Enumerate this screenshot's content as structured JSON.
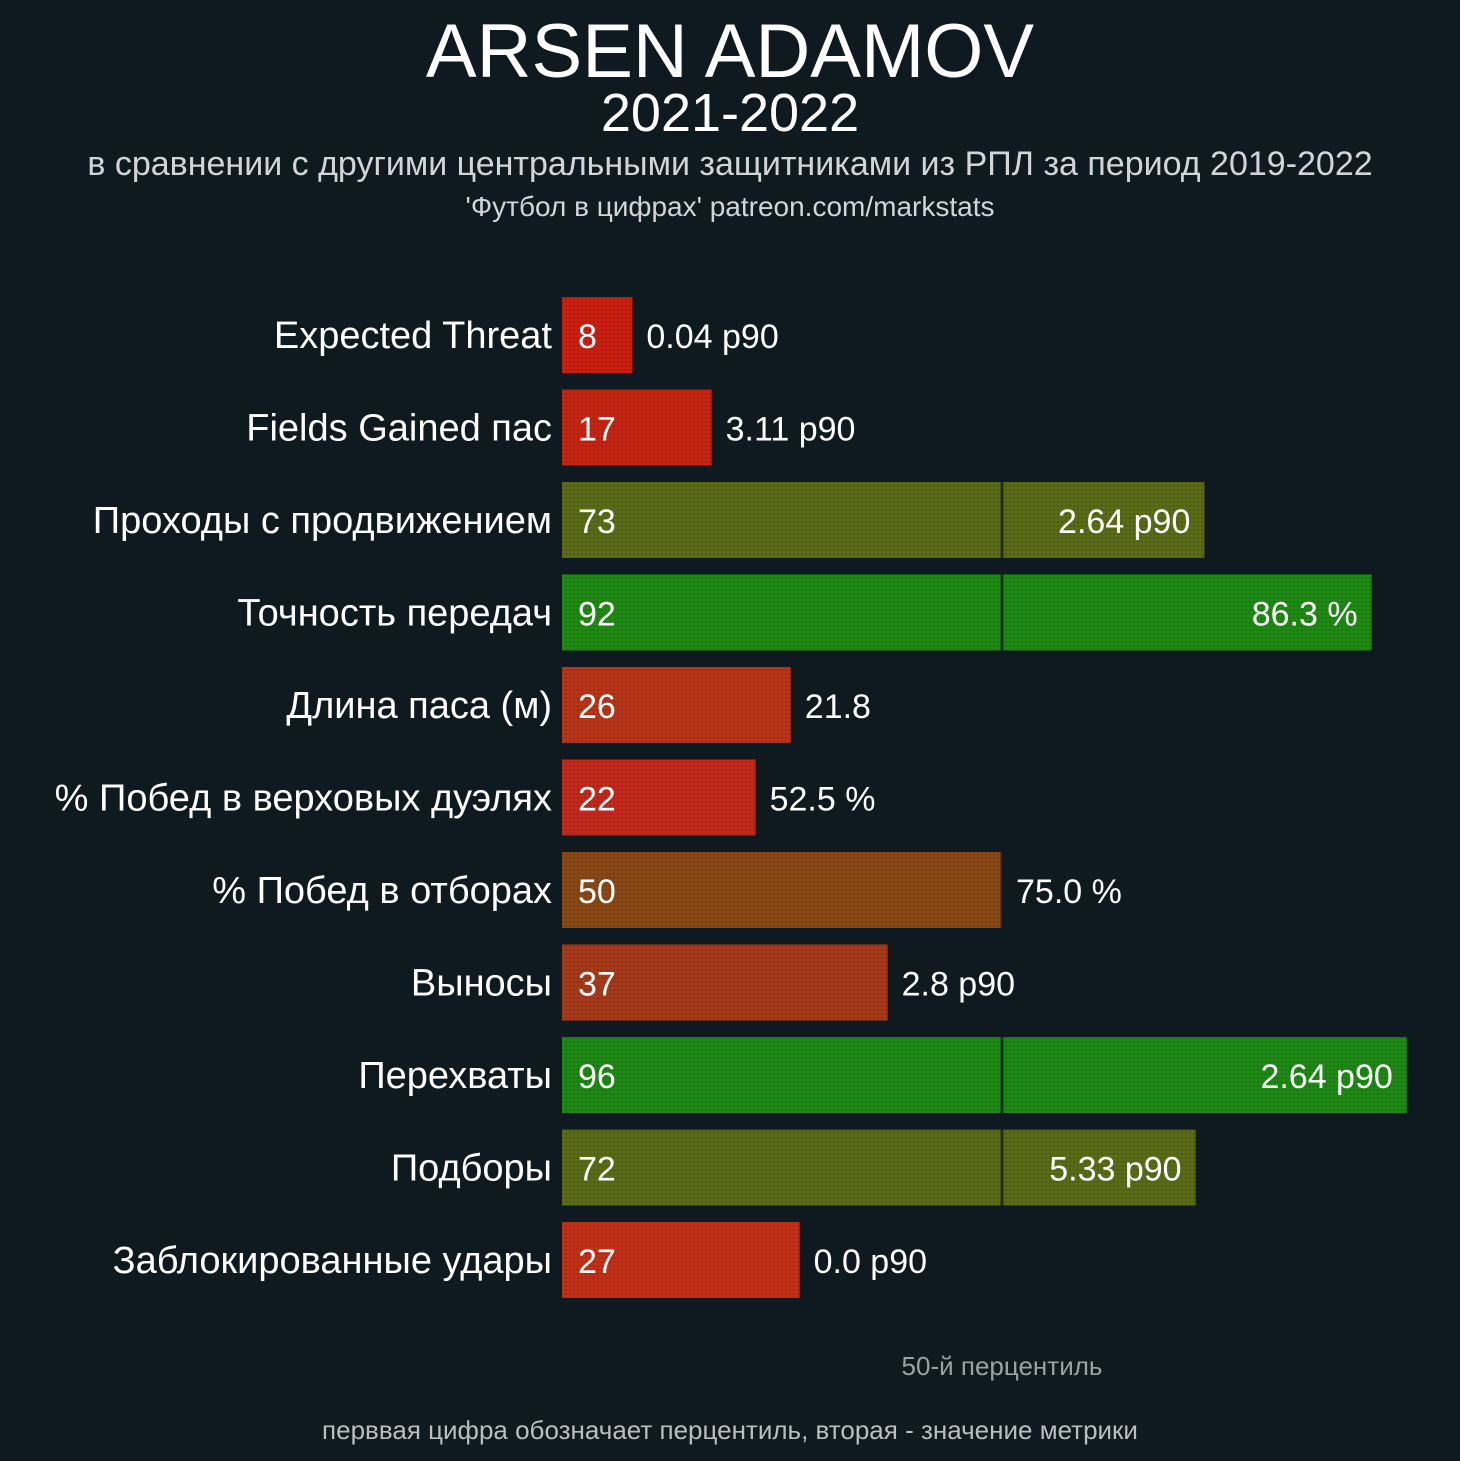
{
  "header": {
    "title": "ARSEN ADAMOV",
    "season": "2021-2022",
    "subtitle": "в сравнении с другими центральными защитниками из РПЛ за период 2019-2022",
    "credit": "'Футбол в цифрах' patreon.com/markstats"
  },
  "chart_data": {
    "type": "bar",
    "orientation": "horizontal",
    "categories": [
      "Expected Threat",
      "Fields Gained пас",
      "Проходы с продвижением",
      "Точность передач",
      "Длина паса (м)",
      "% Побед в верховых дуэлях",
      "% Побед в отборах",
      "Выносы",
      "Перехваты",
      "Подборы",
      "Заблокированные удары"
    ],
    "percentiles": [
      8,
      17,
      73,
      92,
      26,
      22,
      50,
      37,
      96,
      72,
      27
    ],
    "value_labels": [
      "0.04 p90",
      "3.11 p90",
      "2.64 p90",
      "86.3 %",
      "21.8",
      "52.5 %",
      "75.0 %",
      "2.8 p90",
      "2.64 p90",
      "5.33 p90",
      "0.0 p90"
    ],
    "bar_colors": [
      "#c91e10",
      "#c42412",
      "#5a6a17",
      "#1f8a13",
      "#b83418",
      "#c2291a",
      "#8a4716",
      "#a63919",
      "#1d8814",
      "#5b6a17",
      "#c02f16"
    ],
    "xlim": [
      0,
      100
    ],
    "reference_line": {
      "value": 50,
      "label": "50-й перцентиль"
    },
    "note": "перввая цифра обозначает перцентиль, вторая - значение метрики"
  }
}
